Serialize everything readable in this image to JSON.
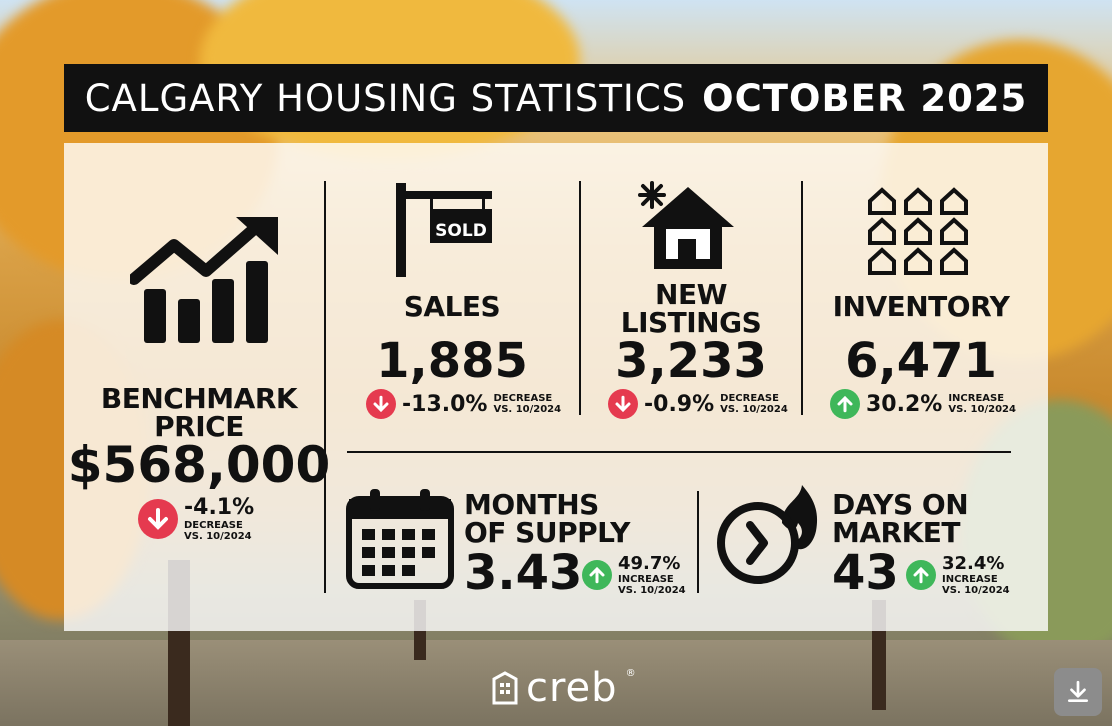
{
  "title": {
    "part1": "CALGARY HOUSING STATISTICS",
    "part2": "OCTOBER 2025"
  },
  "benchmark": {
    "label_line1": "BENCHMARK",
    "label_line2": "PRICE",
    "value": "$568,000",
    "change": "-4.1%",
    "change_word": "DECREASE",
    "compare": "VS. 10/2024",
    "direction": "down"
  },
  "sales": {
    "sign": "SOLD",
    "label": "SALES",
    "value": "1,885",
    "change": "-13.0%",
    "change_word": "DECREASE",
    "compare": "VS. 10/2024",
    "direction": "down"
  },
  "new_listings": {
    "label_line1": "NEW",
    "label_line2": "LISTINGS",
    "value": "3,233",
    "change": "-0.9%",
    "change_word": "DECREASE",
    "compare": "VS. 10/2024",
    "direction": "down"
  },
  "inventory": {
    "label": "INVENTORY",
    "value": "6,471",
    "change": "30.2%",
    "change_word": "INCREASE",
    "compare": "VS. 10/2024",
    "direction": "up"
  },
  "months_supply": {
    "label_line1": "MONTHS",
    "label_line2": "OF SUPPLY",
    "value": "3.43",
    "change": "49.7%",
    "change_word": "INCREASE",
    "compare": "VS. 10/2024",
    "direction": "up"
  },
  "days_on_market": {
    "label_line1": "DAYS ON",
    "label_line2": "MARKET",
    "value": "43",
    "change": "32.4%",
    "change_word": "INCREASE",
    "compare": "VS. 10/2024",
    "direction": "up"
  },
  "logo": {
    "text": "creb",
    "mark": "®"
  },
  "colors": {
    "decrease": "#e53a4f",
    "increase": "#3fb75a",
    "title_bg": "#111111"
  },
  "icons": [
    "bar-chart-growth-icon",
    "sold-sign-icon",
    "new-house-icon",
    "houses-grid-icon",
    "calendar-icon",
    "clock-flame-icon",
    "download-icon"
  ]
}
